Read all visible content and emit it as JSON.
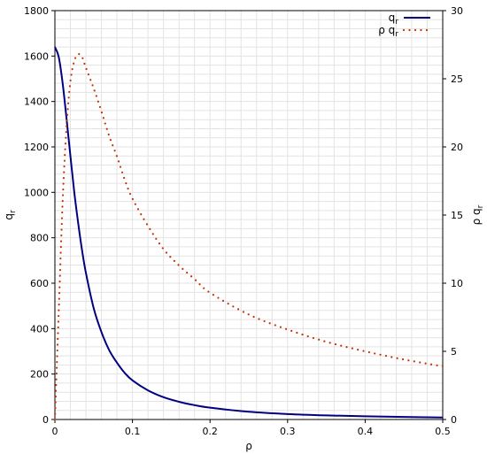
{
  "chart_data": {
    "type": "line",
    "title": "",
    "xlabel": "ρ",
    "ylabel_left": {
      "main": "q",
      "sub": "r"
    },
    "ylabel_right": {
      "main": "ρ q",
      "sub": "r"
    },
    "xlim": [
      0,
      0.5
    ],
    "ylim_left": [
      0,
      1800
    ],
    "ylim_right": [
      0,
      30
    ],
    "x_ticks": [
      "0",
      "0.1",
      "0.2",
      "0.3",
      "0.4",
      "0.5"
    ],
    "x_tick_values": [
      0,
      0.1,
      0.2,
      0.3,
      0.4,
      0.5
    ],
    "y_left_ticks": [
      "0",
      "200",
      "400",
      "600",
      "800",
      "1000",
      "1200",
      "1400",
      "1600",
      "1800"
    ],
    "y_left_tick_values": [
      0,
      200,
      400,
      600,
      800,
      1000,
      1200,
      1400,
      1600,
      1800
    ],
    "y_right_ticks": [
      "0",
      "5",
      "10",
      "15",
      "20",
      "25",
      "30"
    ],
    "y_right_tick_values": [
      0,
      5,
      10,
      15,
      20,
      25,
      30
    ],
    "grid": true,
    "legend_position": "top-right",
    "series": [
      {
        "legend_main": "q",
        "legend_sub": "r",
        "axis": "left",
        "style": "solid",
        "color": "#000080",
        "x": [
          0,
          0.005,
          0.01,
          0.015,
          0.02,
          0.025,
          0.03,
          0.035,
          0.04,
          0.05,
          0.06,
          0.07,
          0.08,
          0.09,
          0.1,
          0.12,
          0.14,
          0.16,
          0.18,
          0.2,
          0.25,
          0.3,
          0.35,
          0.4,
          0.45,
          0.5
        ],
        "y": [
          1640,
          1595,
          1480,
          1325,
          1160,
          1000,
          865,
          745,
          645,
          490,
          385,
          305,
          250,
          205,
          172,
          128,
          98,
          78,
          63,
          52,
          34,
          24,
          18,
          14,
          11,
          9
        ]
      },
      {
        "legend_main": "ρ q",
        "legend_sub": "r",
        "axis": "right",
        "style": "dotted",
        "color": "#c03000",
        "x": [
          0,
          0.005,
          0.01,
          0.015,
          0.02,
          0.025,
          0.03,
          0.035,
          0.04,
          0.05,
          0.06,
          0.07,
          0.08,
          0.09,
          0.1,
          0.12,
          0.14,
          0.16,
          0.18,
          0.2,
          0.25,
          0.3,
          0.35,
          0.4,
          0.45,
          0.5
        ],
        "y": [
          0,
          8,
          16,
          21.5,
          24.8,
          26.3,
          26.8,
          26.6,
          25.8,
          24.3,
          22.6,
          20.8,
          19.3,
          17.6,
          16.2,
          14.2,
          12.5,
          11.3,
          10.3,
          9.3,
          7.7,
          6.6,
          5.7,
          5.0,
          4.4,
          3.9
        ]
      }
    ]
  }
}
